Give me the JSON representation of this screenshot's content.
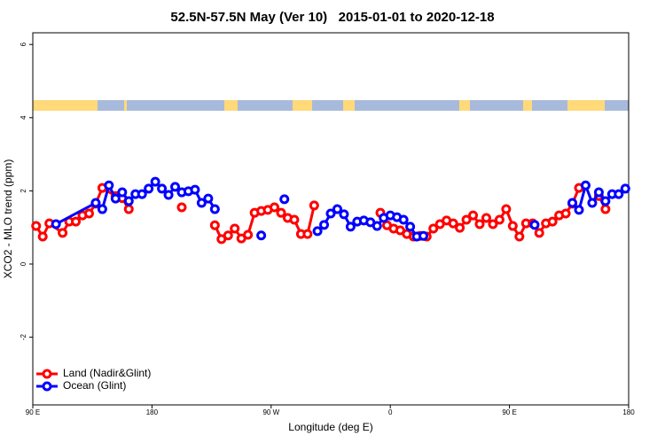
{
  "chart_data": {
    "type": "line",
    "title": "52.5N-57.5N May (Ver 10)   2015-01-01 to 2020-12-18",
    "xlabel": "Longitude (deg E)",
    "ylabel": "XCO2 - MLO trend (ppm)",
    "xlim": [
      90,
      540
    ],
    "xticks": [
      {
        "value": 90,
        "label": "90 E"
      },
      180,
      {
        "value": 270,
        "label": "90 W"
      },
      {
        "value": 360,
        "label": "0"
      },
      {
        "value": 450,
        "label": "90 E"
      },
      {
        "value": 540,
        "label": "180"
      }
    ],
    "ylim": [
      -3.85,
      6.32
    ],
    "yticks": [
      -2,
      0,
      2,
      4,
      6
    ],
    "grid": false,
    "legend": "bottom-left",
    "series": [
      {
        "name": "Land (Nadir&Glint)",
        "color": "#ff0000",
        "x": [
          92.5,
          97.5,
          102.5,
          112.5,
          117.5,
          122.5,
          127.5,
          132.5,
          137.5,
          142.5,
          152.5,
          157.5,
          162.5,
          null,
          202.5,
          null,
          227.5,
          232.5,
          237.5,
          242.5,
          247.5,
          252.5,
          257.5,
          262.5,
          267.5,
          272.5,
          277.5,
          282.5,
          287.5,
          292.5,
          297.5,
          302.5,
          null,
          352.5,
          357.5,
          362.5,
          367.5,
          372.5,
          377.5,
          382.5,
          387.5,
          392.5,
          397.5,
          402.5,
          407.5,
          412.5,
          417.5,
          422.5,
          427.5,
          432.5,
          437.5,
          442.5,
          447.5,
          452.5,
          457.5,
          462.5,
          467.5,
          472.5,
          477.5,
          482.5,
          487.5,
          492.5,
          497.5,
          502.5,
          null,
          517.5,
          522.5
        ],
        "values": [
          1.04,
          0.75,
          1.11,
          0.85,
          1.16,
          1.16,
          1.33,
          1.38,
          1.65,
          2.08,
          1.86,
          1.8,
          1.5,
          null,
          1.55,
          null,
          1.06,
          0.68,
          0.78,
          0.97,
          0.7,
          0.8,
          1.4,
          1.45,
          1.48,
          1.55,
          1.4,
          1.26,
          1.21,
          0.82,
          0.82,
          1.6,
          null,
          1.4,
          1.06,
          0.97,
          0.92,
          0.82,
          0.75,
          0.77,
          0.75,
          0.97,
          1.09,
          1.19,
          1.11,
          0.99,
          1.21,
          1.33,
          1.09,
          1.26,
          1.09,
          1.21,
          1.5,
          1.04,
          0.75,
          1.11,
          1.11,
          0.85,
          1.11,
          1.16,
          1.33,
          1.38,
          1.65,
          2.08,
          null,
          1.86,
          1.5
        ]
      },
      {
        "name": "Ocean (Glint)",
        "color": "#0000ff",
        "x": [
          107.5,
          137.5,
          142.5,
          147.5,
          152.5,
          157.5,
          162.5,
          167.5,
          172.5,
          177.5,
          182.5,
          187.5,
          192.5,
          197.5,
          202.5,
          207.5,
          212.5,
          217.5,
          222.5,
          227.5,
          null,
          262.5,
          null,
          280,
          null,
          305,
          310,
          315,
          320,
          325,
          330,
          335,
          340,
          345,
          350,
          355,
          360,
          365,
          370,
          375,
          380,
          385,
          null,
          469,
          null,
          497.5,
          502.5,
          507.5,
          512.5,
          517.5,
          522.5,
          527.5,
          532.5,
          537.5
        ],
        "values": [
          1.09,
          1.67,
          1.5,
          2.15,
          1.79,
          1.96,
          1.72,
          1.91,
          1.91,
          2.06,
          2.25,
          2.06,
          1.89,
          2.11,
          1.96,
          1.99,
          2.03,
          1.67,
          1.79,
          1.5,
          null,
          0.78,
          null,
          1.77,
          null,
          0.9,
          1.07,
          1.38,
          1.5,
          1.36,
          1.02,
          1.16,
          1.19,
          1.14,
          1.04,
          1.26,
          1.33,
          1.28,
          1.21,
          1.02,
          0.75,
          0.77,
          null,
          1.07,
          null,
          1.67,
          1.48,
          2.15,
          1.67,
          1.96,
          1.72,
          1.91,
          1.91,
          2.06
        ]
      }
    ]
  }
}
